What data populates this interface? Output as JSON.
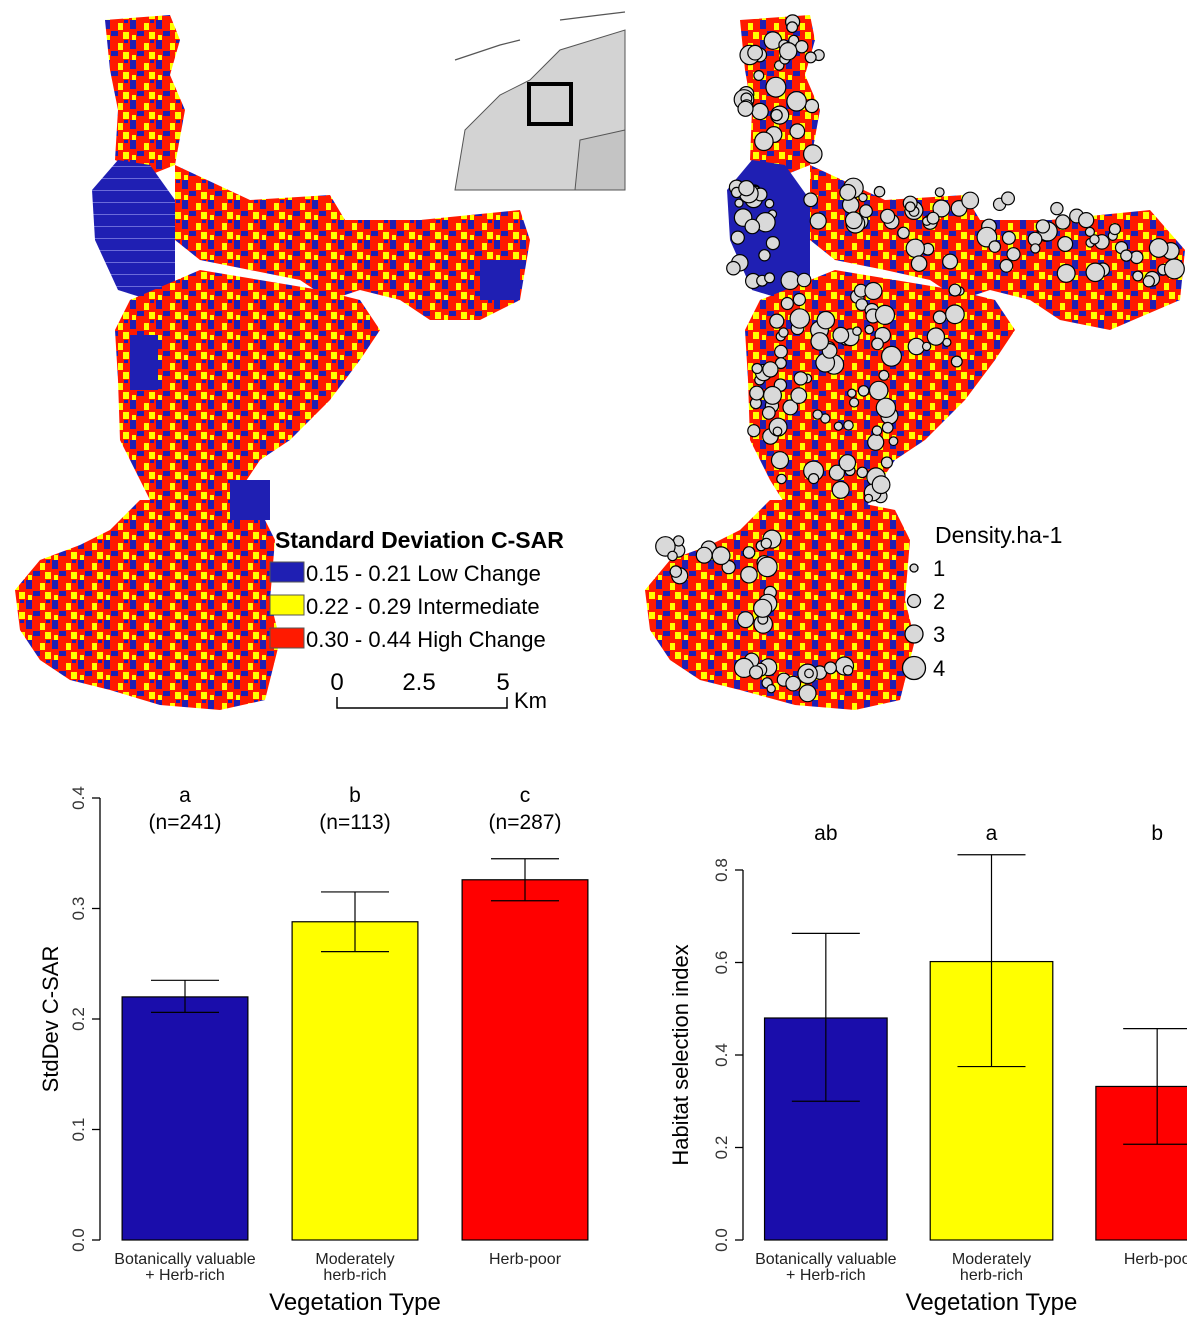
{
  "map_left": {
    "legend_title": "Standard Deviation C-SAR",
    "legend_items": [
      {
        "label": "0.15 - 0.21 Low Change",
        "color": "#1f1fb3"
      },
      {
        "label": "0.22 - 0.29 Intermediate",
        "color": "#ffff00"
      },
      {
        "label": "0.30 - 0.44 High Change",
        "color": "#ff1a00"
      }
    ],
    "scalebar": {
      "ticks": [
        "0",
        "2.5",
        "5"
      ],
      "unit": "Km"
    }
  },
  "map_right": {
    "legend_title": "Density.ha-1",
    "legend_items": [
      "1",
      "2",
      "3",
      "4"
    ]
  },
  "colors": {
    "low": "#1a0dab",
    "mid": "#ffff00",
    "high": "#ff0000",
    "point_fill": "#d9d9d9"
  },
  "chart_data": [
    {
      "type": "bar",
      "categories": [
        "Botanically valuable\n+ Herb-rich",
        "Moderately\nherb-rich",
        "Herb-poor"
      ],
      "values": [
        0.22,
        0.288,
        0.326
      ],
      "error_low": [
        0.206,
        0.261,
        0.307
      ],
      "error_high": [
        0.235,
        0.315,
        0.345
      ],
      "letters": [
        "a",
        "b",
        "c"
      ],
      "n_labels": [
        "(n=241)",
        "(n=113)",
        "(n=287)"
      ],
      "colors": [
        "#1a0dab",
        "#ffff00",
        "#ff0000"
      ],
      "xlabel": "Vegetation Type",
      "ylabel": "StdDev C-SAR",
      "ylim": [
        0,
        0.4
      ],
      "yticks": [
        "0.0",
        "0.1",
        "0.2",
        "0.3",
        "0.4"
      ],
      "grid": false
    },
    {
      "type": "bar",
      "categories": [
        "Botanically valuable\n+ Herb-rich",
        "Moderately\nherb-rich",
        "Herb-poo"
      ],
      "values": [
        0.48,
        0.602,
        0.332
      ],
      "error_low": [
        0.3,
        0.375,
        0.207
      ],
      "error_high": [
        0.663,
        0.833,
        0.457
      ],
      "letters": [
        "ab",
        "a",
        "b"
      ],
      "colors": [
        "#1a0dab",
        "#ffff00",
        "#ff0000"
      ],
      "xlabel": "Vegetation Type",
      "ylabel": "Habitat selection index",
      "ylim": [
        0,
        0.8
      ],
      "yticks": [
        "0.0",
        "0.2",
        "0.4",
        "0.6",
        "0.8"
      ],
      "grid": false
    }
  ]
}
